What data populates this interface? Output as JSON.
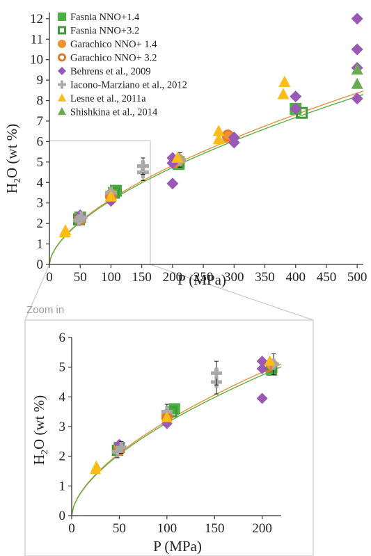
{
  "zoom_label": "Zoom in",
  "chart_data": [
    {
      "type": "scatter",
      "xlabel": "P (MPa)",
      "ylabel": "H2O (wt %)",
      "ylabel_parts": {
        "a": "H",
        "sub": "2",
        "b": "O (wt %)"
      },
      "xlim": [
        0,
        510
      ],
      "ylim": [
        0,
        12.3
      ],
      "x_ticks": [
        "0",
        "50",
        "100",
        "150",
        "200",
        "250",
        "300",
        "350",
        "400",
        "450",
        "500"
      ],
      "y_ticks": [
        "0",
        "1",
        "2",
        "3",
        "4",
        "5",
        "6",
        "7",
        "8",
        "9",
        "10",
        "11",
        "12"
      ],
      "legend_position": "top-left",
      "grid": false,
      "series": [
        {
          "name": "Fasnia NNO+1.4",
          "marker": "square-filled",
          "color": "#4caf42",
          "points": [
            [
              50,
              2.3
            ],
            [
              108,
              3.6
            ],
            [
              210,
              4.9
            ],
            [
              400,
              7.6
            ]
          ]
        },
        {
          "name": "Fasnia NNO+3.2",
          "marker": "square-open",
          "color": "#3f9a39",
          "points": [
            [
              48,
              2.2
            ],
            [
              105,
              3.5
            ],
            [
              210,
              5.0
            ],
            [
              410,
              7.4
            ]
          ]
        },
        {
          "name": "Garachico NNO+ 1.4",
          "marker": "circle-filled",
          "color": "#f0922b",
          "points": [
            [
              50,
              2.3
            ],
            [
              100,
              3.4
            ],
            [
              210,
              5.1
            ],
            [
              290,
              6.2
            ]
          ]
        },
        {
          "name": "Garachico NNO+ 3.2",
          "marker": "circle-open",
          "color": "#e07b2d",
          "points": [
            [
              50,
              2.2
            ],
            [
              100,
              3.3
            ],
            [
              205,
              5.0
            ],
            [
              290,
              6.3
            ]
          ]
        },
        {
          "name": "Behrens et al., 2009",
          "marker": "diamond",
          "color": "#9b59b6",
          "points": [
            [
              50,
              2.4
            ],
            [
              100,
              3.1
            ],
            [
              200,
              5.2
            ],
            [
              200,
              3.95
            ],
            [
              200,
              4.95
            ],
            [
              300,
              5.95
            ],
            [
              300,
              6.2
            ],
            [
              400,
              8.2
            ],
            [
              400,
              7.6
            ],
            [
              500,
              12.0
            ],
            [
              500,
              10.5
            ],
            [
              500,
              9.6
            ],
            [
              500,
              8.1
            ]
          ]
        },
        {
          "name": "Iacono-Marziano et al., 2012",
          "marker": "plus",
          "color": "#a9a9a9",
          "points": [
            [
              48,
              2.15
            ],
            [
              52,
              2.3
            ],
            [
              100,
              3.5
            ],
            [
              152,
              4.5
            ],
            [
              152,
              4.8
            ],
            [
              212,
              5.1
            ]
          ],
          "errors": [
            0.2,
            0.2,
            0.25,
            0.4,
            0.4,
            0.35
          ]
        },
        {
          "name": "Lesne et al., 2011a",
          "marker": "triangle",
          "color": "#fbbd15",
          "points": [
            [
              25,
              1.55
            ],
            [
              26,
              1.65
            ],
            [
              100,
              3.3
            ],
            [
              208,
              5.2
            ],
            [
              275,
              6.1
            ],
            [
              275,
              6.5
            ],
            [
              380,
              8.3
            ],
            [
              382,
              8.9
            ]
          ]
        },
        {
          "name": "Shishkina et al., 2014",
          "marker": "triangle",
          "color": "#6aaa50",
          "points": [
            [
              500,
              9.5
            ],
            [
              500,
              8.8
            ]
          ]
        }
      ],
      "fit_curves": [
        {
          "color": "#e8913a",
          "equation_form": "H2O = a·P^0.6",
          "a": 0.201
        },
        {
          "color": "#5cb046",
          "equation_form": "H2O = a·P^0.6",
          "a": 0.197
        }
      ]
    },
    {
      "type": "scatter",
      "title": "",
      "xlabel": "P (MPa)",
      "ylabel": "H2O (wt %)",
      "ylabel_parts": {
        "a": "H",
        "sub": "2",
        "b": "O (wt %)"
      },
      "xlim": [
        0,
        220
      ],
      "ylim": [
        0,
        6
      ],
      "x_ticks": [
        "0",
        "50",
        "100",
        "150",
        "200"
      ],
      "y_ticks": [
        "0",
        "1",
        "2",
        "3",
        "4",
        "5",
        "6"
      ],
      "grid": false,
      "note": "zoomed view of P 0–220 MPa, H2O 0–6 wt% of the main plot"
    }
  ]
}
